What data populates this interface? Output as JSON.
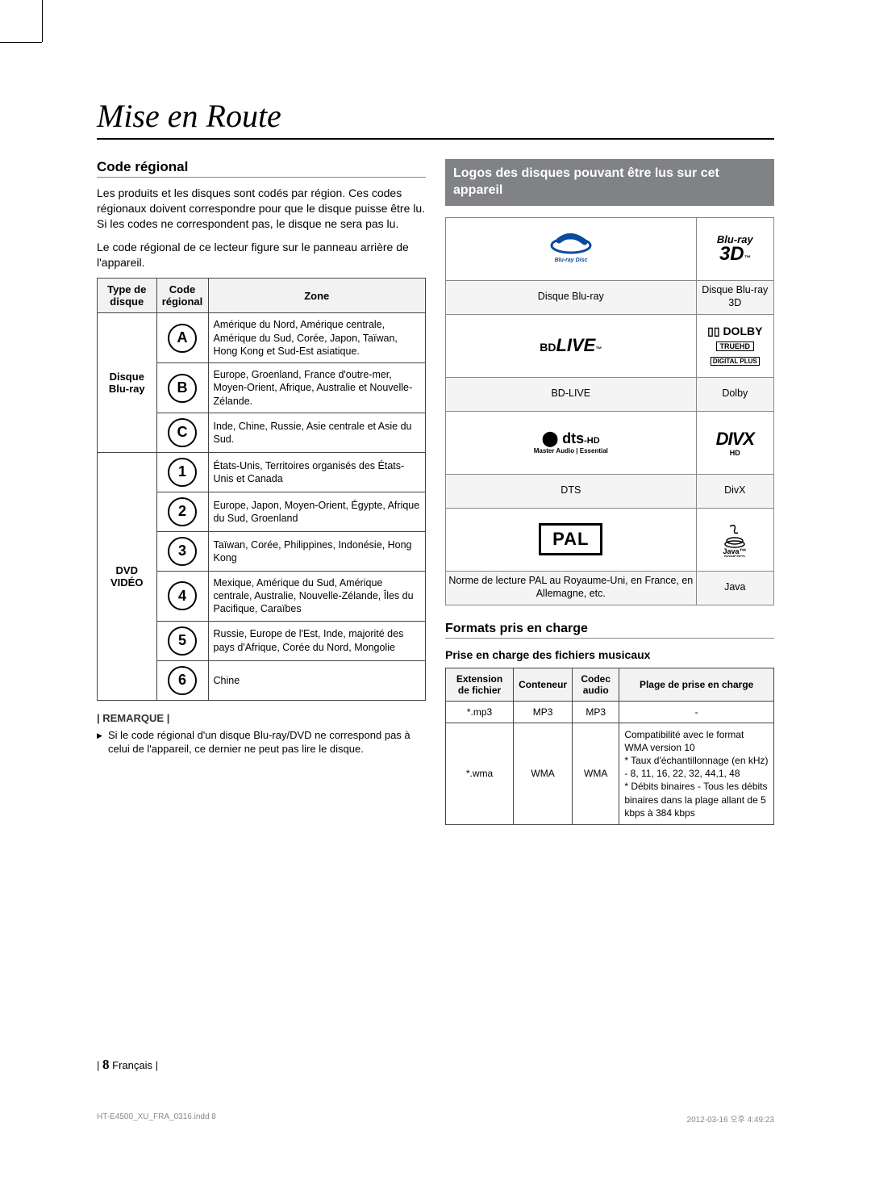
{
  "title": "Mise en Route",
  "left": {
    "heading": "Code régional",
    "para1": "Les produits et les disques sont codés par région. Ces codes régionaux doivent correspondre pour que le disque puisse être lu. Si les codes ne correspondent pas, le disque ne sera pas lu.",
    "para2": "Le code régional de ce lecteur figure sur le panneau arrière de l'appareil.",
    "table": {
      "headers": [
        "Type de disque",
        "Code régional",
        "Zone"
      ],
      "groups": [
        {
          "type": "Disque Blu-ray",
          "rows": [
            {
              "code": "A",
              "zone": "Amérique du Nord, Amérique centrale, Amérique du Sud, Corée, Japon, Taïwan, Hong Kong et Sud-Est asiatique."
            },
            {
              "code": "B",
              "zone": "Europe, Groenland, France d'outre-mer, Moyen-Orient, Afrique, Australie et Nouvelle-Zélande."
            },
            {
              "code": "C",
              "zone": "Inde, Chine, Russie, Asie centrale et Asie du Sud."
            }
          ]
        },
        {
          "type": "DVD VIDÉO",
          "rows": [
            {
              "code": "1",
              "zone": "États-Unis, Territoires organisés des États-Unis et Canada"
            },
            {
              "code": "2",
              "zone": "Europe, Japon, Moyen-Orient, Égypte, Afrique du Sud, Groenland"
            },
            {
              "code": "3",
              "zone": "Taïwan, Corée, Philippines, Indonésie, Hong Kong"
            },
            {
              "code": "4",
              "zone": "Mexique, Amérique du Sud, Amérique centrale, Australie, Nouvelle-Zélande, Îles du Pacifique, Caraïbes"
            },
            {
              "code": "5",
              "zone": "Russie, Europe de l'Est, Inde, majorité des pays d'Afrique, Corée du Nord, Mongolie"
            },
            {
              "code": "6",
              "zone": "Chine"
            }
          ]
        }
      ]
    },
    "remarque_label": "| REMARQUE |",
    "remarque_text": "Si le code régional d'un disque Blu-ray/DVD ne correspond pas à celui de l'appareil, ce dernier ne peut pas lire le disque."
  },
  "right": {
    "banner": "Logos des disques pouvant être lus sur cet appareil",
    "logo_rows": [
      {
        "left_label": "Disque Blu-ray",
        "right_label": "Disque Blu-ray 3D"
      },
      {
        "left_label": "BD-LIVE",
        "right_label": "Dolby"
      },
      {
        "left_label": "DTS",
        "right_label": "DivX"
      },
      {
        "left_label": "Norme de lecture PAL au Royaume-Uni, en France, en Allemagne, etc.",
        "right_label": "Java"
      }
    ],
    "formats_heading": "Formats pris en charge",
    "music_heading": "Prise en charge des fichiers musicaux",
    "audio_table": {
      "headers": [
        "Extension de fichier",
        "Conteneur",
        "Codec audio",
        "Plage de prise en charge"
      ],
      "rows": [
        {
          "ext": "*.mp3",
          "container": "MP3",
          "codec": "MP3",
          "support": "-"
        },
        {
          "ext": "*.wma",
          "container": "WMA",
          "codec": "WMA",
          "support": "Compatibilité avec le format WMA version 10\n* Taux d'échantillonnage (en kHz) - 8, 11, 16, 22, 32, 44,1, 48\n* Débits binaires - Tous les débits binaires dans la plage allant de 5 kbps à 384 kbps"
        }
      ]
    }
  },
  "footer": {
    "page": "8",
    "lang": "Français",
    "file": "HT-E4500_XU_FRA_0316.indd   8",
    "datetime": "2012-03-16   오후 4:49:23"
  }
}
